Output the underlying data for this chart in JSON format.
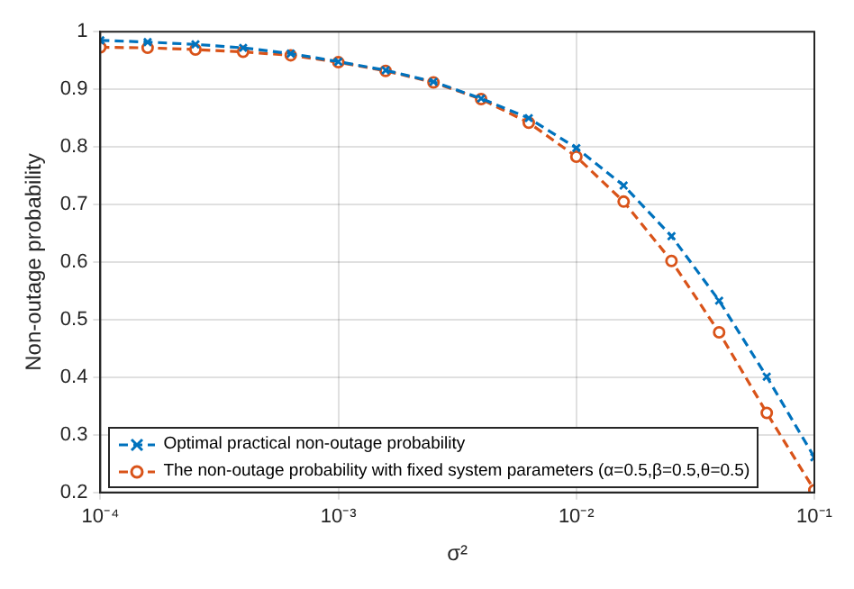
{
  "chart_data": {
    "type": "line",
    "xlabel": "σ²",
    "ylabel": "Non-outage probability",
    "log": "x",
    "x": [
      0.0001,
      0.000158,
      0.000251,
      0.000398,
      0.000631,
      0.001,
      0.00158,
      0.00251,
      0.00398,
      0.00631,
      0.01,
      0.0158,
      0.0251,
      0.0398,
      0.0631,
      0.1
    ],
    "series": [
      {
        "name": "Optimal practical non-outage probability",
        "color": "#0072bd",
        "marker": "cross",
        "values": [
          0.985,
          0.982,
          0.978,
          0.972,
          0.962,
          0.948,
          0.933,
          0.913,
          0.884,
          0.85,
          0.798,
          0.733,
          0.645,
          0.533,
          0.401,
          0.261
        ]
      },
      {
        "name": "The non-outage probability with fixed system parameters (α=0.5,β=0.5,θ=0.5)",
        "color": "#d95319",
        "marker": "circle",
        "values": [
          0.973,
          0.972,
          0.969,
          0.965,
          0.959,
          0.947,
          0.932,
          0.912,
          0.883,
          0.842,
          0.783,
          0.705,
          0.602,
          0.478,
          0.338,
          0.204
        ]
      }
    ],
    "xlim": [
      0.0001,
      0.1
    ],
    "xticks": [
      {
        "value": 0.0001,
        "label": "10⁻⁴"
      },
      {
        "value": 0.001,
        "label": "10⁻³"
      },
      {
        "value": 0.01,
        "label": "10⁻²"
      },
      {
        "value": 0.1,
        "label": "10⁻¹"
      }
    ],
    "ylim": [
      0.2,
      1
    ],
    "yticks": [
      0.2,
      0.3,
      0.4,
      0.5,
      0.6,
      0.7,
      0.8,
      0.9,
      1
    ],
    "grid": true,
    "legend": "bottom left",
    "line_style": "dashed"
  }
}
